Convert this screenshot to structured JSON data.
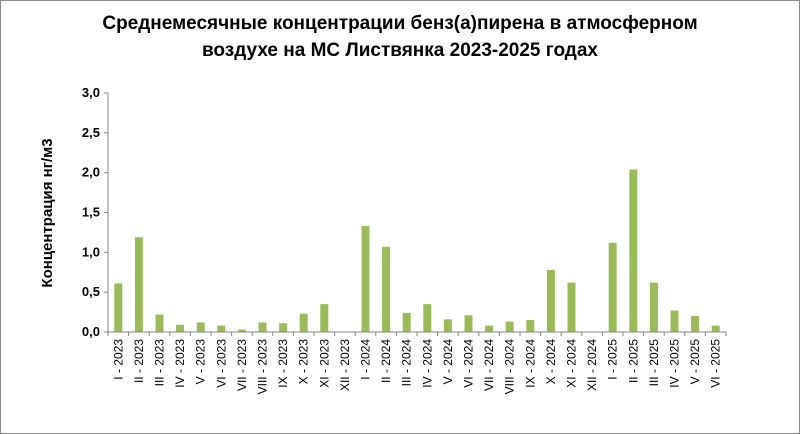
{
  "chart_data": {
    "type": "bar",
    "title_line1": "Среднемесячные концентрации бенз(а)пирена в атмосферном",
    "title_line2": "воздухе на МС Листвянка  2023-2025 годах",
    "xlabel": "",
    "ylabel": "Концентрация нг/м3",
    "ylim": [
      0,
      3.0
    ],
    "yticks": [
      "0,0",
      "0,5",
      "1,0",
      "1,5",
      "2,0",
      "2,5",
      "3,0"
    ],
    "grid": false,
    "legend": "none",
    "bar_color": "#9bbb59",
    "categories": [
      "I - 2023",
      "II - 2023",
      "III - 2023",
      "IV - 2023",
      "V - 2023",
      "VI - 2023",
      "VII - 2023",
      "VIII - 2023",
      "IX - 2023",
      "X - 2023",
      "XI - 2023",
      "XII - 2023",
      "I - 2024",
      "II - 2024",
      "III - 2024",
      "IV - 2024",
      "V - 2024",
      "VI - 2024",
      "VII - 2024",
      "VIII - 2024",
      "IX - 2024",
      "X - 2024",
      "XI - 2024",
      "XII - 2024",
      "I - 2025",
      "II - 2025",
      "III - 2025",
      "IV - 2025",
      "V - 2025",
      "VI - 2025"
    ],
    "values": [
      0.61,
      1.19,
      0.22,
      0.09,
      0.12,
      0.08,
      0.03,
      0.12,
      0.11,
      0.23,
      0.35,
      null,
      1.33,
      1.07,
      0.24,
      0.35,
      0.16,
      0.21,
      0.08,
      0.13,
      0.15,
      0.78,
      0.62,
      null,
      1.12,
      2.04,
      0.62,
      0.27,
      0.2,
      0.08
    ]
  }
}
